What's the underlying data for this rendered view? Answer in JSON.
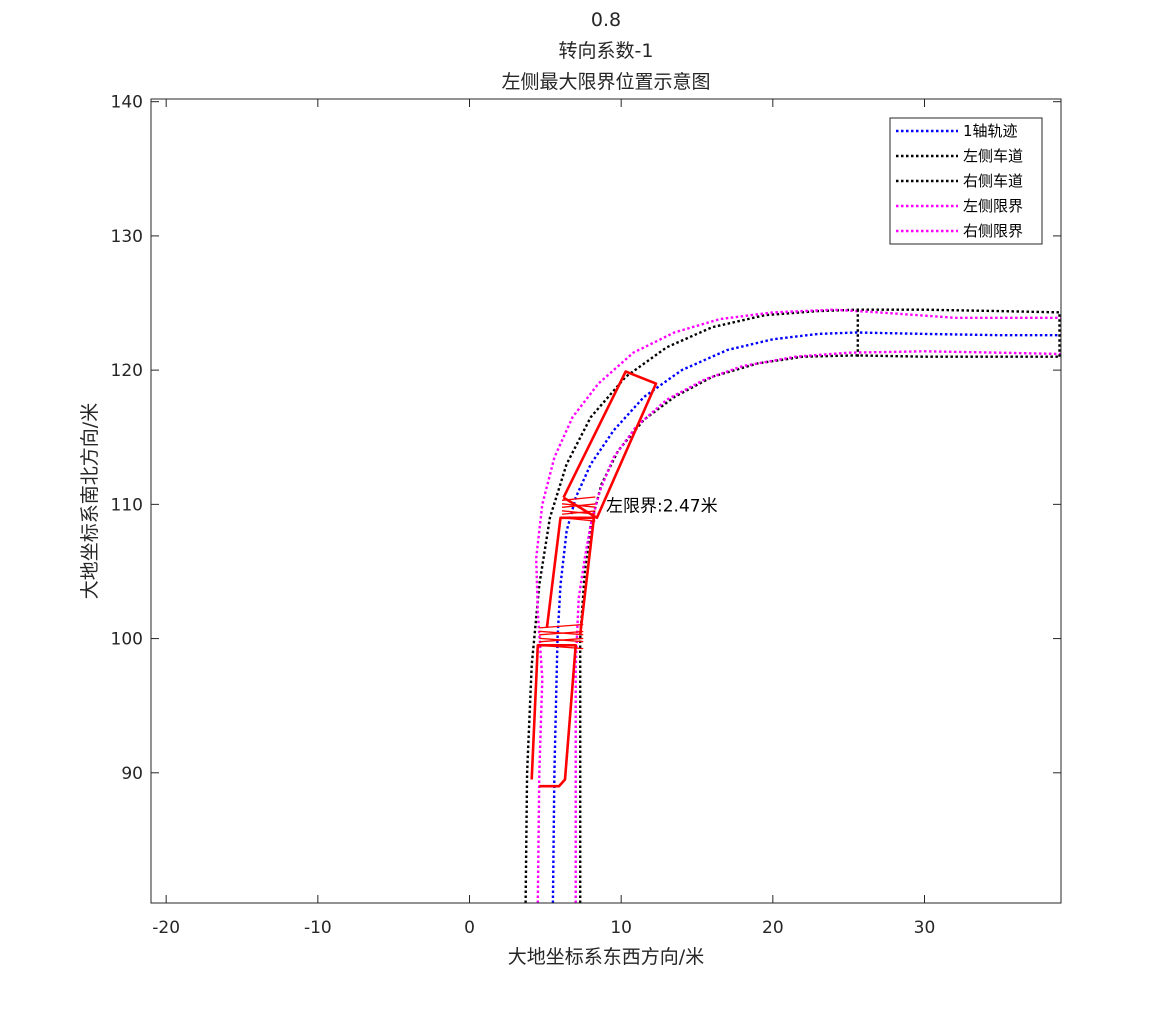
{
  "chart_data": {
    "type": "line",
    "title": [
      "0.8",
      "转向系数-1",
      "左侧最大限界位置示意图"
    ],
    "xlabel": "大地坐标系东西方向/米",
    "ylabel": "大地坐标系南北方向/米",
    "xlim": [
      -21,
      39
    ],
    "ylim": [
      80.3,
      140.2
    ],
    "xticks": [
      -20,
      -10,
      0,
      10,
      20,
      30
    ],
    "yticks": [
      90,
      100,
      110,
      120,
      130,
      140
    ],
    "grid": false,
    "legend_position": "top-right",
    "colors": {
      "blue": "#0000ff",
      "black": "#000000",
      "magenta": "#ff00ff",
      "red": "#ff0000"
    },
    "series": [
      {
        "name": "1轴轨迹",
        "color": "#0000ff",
        "style": "dotted",
        "x": [
          5.5,
          5.6,
          5.8,
          6.0,
          6.4,
          7.0,
          8.0,
          9.5,
          11.5,
          14.0,
          17.0,
          20.0,
          23.0,
          25.5,
          30.0,
          35.0,
          39.0
        ],
        "y": [
          80.3,
          90.0,
          100.0,
          104.0,
          108.0,
          110.5,
          113.0,
          115.5,
          118.0,
          120.0,
          121.5,
          122.3,
          122.7,
          122.8,
          122.7,
          122.6,
          122.6
        ]
      },
      {
        "name": "左侧车道",
        "color": "#000000",
        "style": "dotted",
        "x": [
          3.7,
          3.8,
          4.1,
          4.6,
          5.3,
          6.4,
          8.0,
          10.3,
          13.0,
          16.0,
          19.5,
          23.0,
          25.5,
          30.0,
          35.0,
          39.0
        ],
        "y": [
          80.3,
          90.0,
          98.0,
          104.0,
          109.0,
          113.0,
          116.5,
          119.5,
          121.7,
          123.2,
          124.1,
          124.4,
          124.5,
          124.5,
          124.4,
          124.3
        ]
      },
      {
        "name": "右侧车道",
        "color": "#000000",
        "style": "dotted",
        "x": [
          7.3,
          7.3,
          7.6,
          8.0,
          8.7,
          9.8,
          11.5,
          13.5,
          16.0,
          19.0,
          22.0,
          25.5,
          30.0,
          35.0,
          39.0
        ],
        "y": [
          80.3,
          100.0,
          105.0,
          108.5,
          111.5,
          114.0,
          116.3,
          118.0,
          119.5,
          120.5,
          121.0,
          121.1,
          121.0,
          121.0,
          121.0
        ]
      },
      {
        "name": "左侧限界",
        "color": "#ff00ff",
        "style": "dotted",
        "x": [
          4.5,
          4.6,
          4.8,
          4.5,
          4.4,
          4.8,
          5.6,
          6.8,
          8.5,
          10.8,
          13.5,
          16.5,
          20.0,
          24.0,
          27.0,
          32.0,
          39.0
        ],
        "y": [
          80.3,
          90.0,
          97.0,
          102.0,
          106.0,
          110.0,
          113.5,
          116.5,
          119.0,
          121.3,
          122.8,
          123.8,
          124.3,
          124.5,
          124.3,
          123.9,
          123.9
        ]
      },
      {
        "name": "右侧限界",
        "color": "#ff00ff",
        "style": "dotted",
        "x": [
          7.0,
          7.0,
          7.2,
          7.6,
          8.0,
          8.6,
          9.5,
          11.0,
          13.0,
          15.5,
          18.0,
          21.5,
          25.0,
          30.0,
          35.0,
          39.0
        ],
        "y": [
          80.3,
          98.0,
          103.0,
          106.0,
          108.5,
          111.0,
          113.5,
          115.8,
          117.8,
          119.3,
          120.3,
          121.0,
          121.3,
          121.4,
          121.3,
          121.2
        ]
      }
    ],
    "lane_markers": [
      {
        "color": "#000000",
        "x": [
          25.6,
          25.6
        ],
        "y": [
          121.0,
          124.6
        ]
      },
      {
        "color": "#000000",
        "x": [
          38.9,
          38.9
        ],
        "y": [
          121.0,
          124.3
        ]
      }
    ],
    "vehicle_segments": [
      {
        "color": "#ff0000",
        "x": [
          4.1,
          4.5,
          5.0,
          5.9,
          7.0,
          6.3,
          5.9,
          5.5,
          4.6
        ],
        "y": [
          89.5,
          99.5,
          99.5,
          99.5,
          99.5,
          89.5,
          89.0,
          89.0,
          89.0
        ]
      },
      {
        "color": "#ff0000",
        "x": [
          5.1,
          6.0,
          7.1,
          8.2,
          7.3
        ],
        "y": [
          100.8,
          109.0,
          109.0,
          109.0,
          100.3
        ]
      },
      {
        "color": "#ff0000",
        "x": [
          6.2,
          8.4,
          12.3,
          10.3,
          6.2
        ],
        "y": [
          110.5,
          109.0,
          119.0,
          119.9,
          110.5
        ]
      }
    ],
    "joint_hatches": [
      {
        "color": "#ff0000",
        "x": [
          4.6,
          7.5
        ],
        "y_start": 99.5,
        "y_end": 100.8,
        "count": 6
      },
      {
        "color": "#ff0000",
        "x": [
          6.1,
          8.3
        ],
        "y_start": 109.0,
        "y_end": 110.3,
        "count": 6
      }
    ],
    "annotation": {
      "text": "左限界:2.47米",
      "x": 9.0,
      "y": 109.9
    }
  }
}
